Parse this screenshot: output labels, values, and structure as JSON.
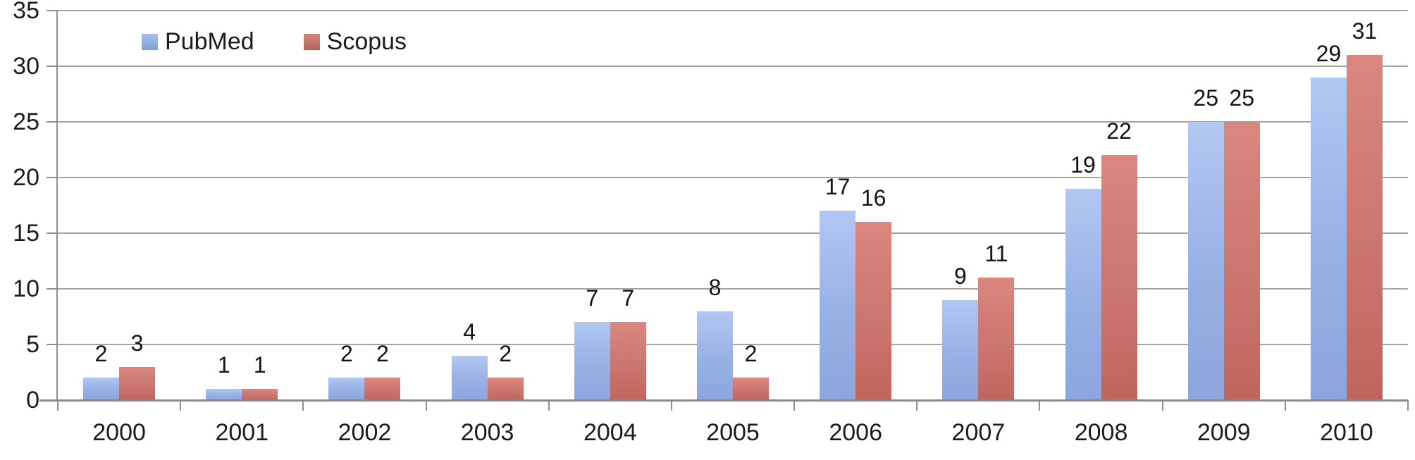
{
  "chart_data": {
    "type": "bar",
    "title": "",
    "categories": [
      "2000",
      "2001",
      "2002",
      "2003",
      "2004",
      "2005",
      "2006",
      "2007",
      "2008",
      "2009",
      "2010"
    ],
    "series": [
      {
        "name": "PubMed",
        "color": "#96afe4",
        "values": [
          2,
          1,
          2,
          4,
          7,
          8,
          17,
          9,
          19,
          25,
          29
        ]
      },
      {
        "name": "Scopus",
        "color": "#ca756e",
        "values": [
          3,
          1,
          2,
          2,
          7,
          2,
          16,
          11,
          22,
          25,
          31
        ]
      }
    ],
    "xlabel": "",
    "ylabel": "",
    "ylim": [
      0,
      35
    ],
    "y_tick_step": 5,
    "y_tick_labels": [
      "0",
      "5",
      "10",
      "15",
      "20",
      "25",
      "30",
      "35"
    ],
    "grid": true,
    "data_labels_shown": true,
    "legend_position": "top-left"
  },
  "styles": {
    "background": "#ffffff",
    "grid_color": "#a3a3a3",
    "axis_color": "#8f8f8f",
    "text_color": "#1c1c1c",
    "pubmed_bar_top": "#b2c7f1",
    "pubmed_bar_bottom": "#8ca5dc",
    "scopus_bar_top": "#d9877f",
    "scopus_bar_bottom": "#c0655d"
  }
}
